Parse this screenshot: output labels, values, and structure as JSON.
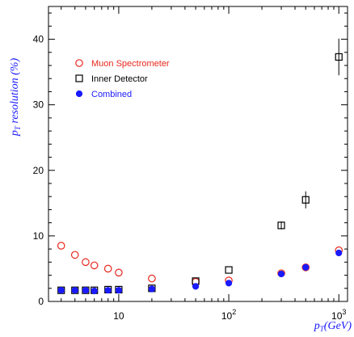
{
  "chart_data": {
    "type": "scatter",
    "xscale": "log",
    "xlim": [
      2.3,
      1200
    ],
    "ylim": [
      0,
      45
    ],
    "ylabel_text": "p",
    "ylabel_sub": "T",
    "ylabel_rest": " resolution (%)",
    "xlabel_text": "p",
    "xlabel_sub": "T",
    "xlabel_rest": "(GeV)",
    "yticks": [
      0,
      10,
      20,
      30,
      40
    ],
    "xticks": [
      {
        "value": 10,
        "label": "10",
        "sup": ""
      },
      {
        "value": 100,
        "label": "10",
        "sup": "2"
      },
      {
        "value": 1000,
        "label": "10",
        "sup": "3"
      }
    ],
    "legend": {
      "placement": "top-left",
      "entries": [
        {
          "label": "Muon Spectrometer",
          "series": 0
        },
        {
          "label": "Inner Detector",
          "series": 1
        },
        {
          "label": "Combined",
          "series": 2
        }
      ]
    },
    "series": [
      {
        "marker": "open-circle",
        "color": "#e8281e",
        "points": [
          {
            "x": 3,
            "y": 8.5
          },
          {
            "x": 4,
            "y": 7.1
          },
          {
            "x": 5,
            "y": 6.0
          },
          {
            "x": 6,
            "y": 5.5
          },
          {
            "x": 8,
            "y": 5.0
          },
          {
            "x": 10,
            "y": 4.4
          },
          {
            "x": 20,
            "y": 3.5
          },
          {
            "x": 50,
            "y": 3.0
          },
          {
            "x": 100,
            "y": 3.2
          },
          {
            "x": 300,
            "y": 4.3
          },
          {
            "x": 500,
            "y": 5.2
          },
          {
            "x": 1000,
            "y": 7.8
          }
        ]
      },
      {
        "marker": "open-square",
        "color": "#000000",
        "points": [
          {
            "x": 3,
            "y": 1.7
          },
          {
            "x": 4,
            "y": 1.7
          },
          {
            "x": 5,
            "y": 1.7
          },
          {
            "x": 6,
            "y": 1.7
          },
          {
            "x": 8,
            "y": 1.8
          },
          {
            "x": 10,
            "y": 1.8
          },
          {
            "x": 20,
            "y": 2.0
          },
          {
            "x": 50,
            "y": 3.1
          },
          {
            "x": 100,
            "y": 4.8
          },
          {
            "x": 300,
            "y": 11.6,
            "err": 0.6
          },
          {
            "x": 500,
            "y": 15.5,
            "err": 1.3
          },
          {
            "x": 1000,
            "y": 37.3,
            "err": 2.8
          }
        ]
      },
      {
        "marker": "filled-circle",
        "color": "#1a1aff",
        "points": [
          {
            "x": 3,
            "y": 1.7
          },
          {
            "x": 4,
            "y": 1.7
          },
          {
            "x": 5,
            "y": 1.7
          },
          {
            "x": 6,
            "y": 1.6
          },
          {
            "x": 8,
            "y": 1.7
          },
          {
            "x": 10,
            "y": 1.7
          },
          {
            "x": 20,
            "y": 1.9
          },
          {
            "x": 50,
            "y": 2.3
          },
          {
            "x": 100,
            "y": 2.8
          },
          {
            "x": 300,
            "y": 4.2
          },
          {
            "x": 500,
            "y": 5.2
          },
          {
            "x": 1000,
            "y": 7.4
          }
        ]
      }
    ]
  }
}
